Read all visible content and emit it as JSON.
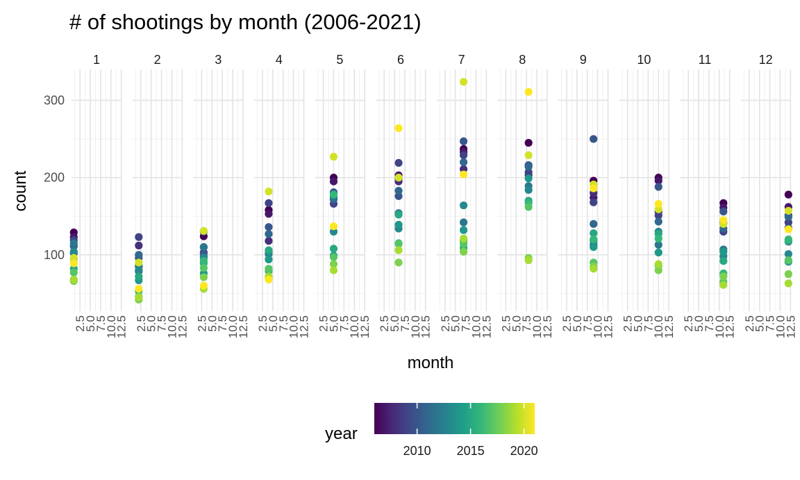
{
  "chart_data": {
    "type": "scatter",
    "title": "# of shootings by month (2006-2021)",
    "xlabel": "month",
    "ylabel": "count",
    "facet_labels": [
      "1",
      "2",
      "3",
      "4",
      "5",
      "6",
      "7",
      "8",
      "9",
      "10",
      "11",
      "12"
    ],
    "x_tick_labels": [
      "2.5",
      "5.0",
      "7.5",
      "10.0",
      "12.5"
    ],
    "x_ticks": [
      2.5,
      5.0,
      7.5,
      10.0,
      12.5
    ],
    "xlim": [
      0.45,
      12.55
    ],
    "y_tick_labels": [
      "100",
      "200",
      "300"
    ],
    "y_ticks": [
      100,
      200,
      300
    ],
    "ylim": [
      27,
      340
    ],
    "grid": true,
    "legend": {
      "title": "year",
      "position": "bottom",
      "tick_labels": [
        "2010",
        "2015",
        "2020"
      ],
      "ticks": [
        2010,
        2015,
        2020
      ],
      "range": [
        2006,
        2021
      ],
      "colors": [
        "#440154",
        "#482878",
        "#3e4a89",
        "#31688e",
        "#26828e",
        "#1f9e89",
        "#35b779",
        "#6ece58",
        "#b5de2b",
        "#fde725"
      ]
    },
    "years": [
      2006,
      2007,
      2008,
      2009,
      2010,
      2011,
      2012,
      2013,
      2014,
      2015,
      2016,
      2017,
      2018,
      2019,
      2020,
      2021
    ],
    "series": [
      {
        "month": 1,
        "counts": [
          129,
          123,
          112,
          119,
          102,
          111,
          115,
          104,
          95,
          82,
          68,
          77,
          66,
          68,
          96,
          89
        ]
      },
      {
        "month": 2,
        "counts": [
          79,
          85,
          112,
          123,
          96,
          100,
          86,
          80,
          67,
          72,
          53,
          46,
          42,
          45,
          90,
          56
        ]
      },
      {
        "month": 3,
        "counts": [
          124,
          103,
          110,
          130,
          102,
          98,
          110,
          96,
          76,
          89,
          92,
          83,
          71,
          56,
          131,
          60
        ]
      },
      {
        "month": 4,
        "counts": [
          158,
          153,
          118,
          167,
          136,
          127,
          101,
          103,
          94,
          106,
          79,
          82,
          69,
          72,
          182,
          68
        ]
      },
      {
        "month": 5,
        "counts": [
          200,
          195,
          172,
          166,
          181,
          172,
          175,
          130,
          99,
          108,
          178,
          97,
          88,
          80,
          227,
          137
        ]
      },
      {
        "month": 6,
        "counts": [
          199,
          203,
          195,
          219,
          176,
          183,
          154,
          134,
          139,
          152,
          115,
          114,
          90,
          106,
          200,
          264
        ]
      },
      {
        "month": 7,
        "counts": [
          237,
          233,
          211,
          229,
          247,
          220,
          142,
          164,
          132,
          109,
          118,
          114,
          104,
          121,
          324,
          204
        ]
      },
      {
        "month": 8,
        "counts": [
          245,
          216,
          203,
          207,
          216,
          214,
          189,
          184,
          199,
          170,
          167,
          162,
          96,
          93,
          229,
          311
        ]
      },
      {
        "month": 9,
        "counts": [
          196,
          174,
          180,
          168,
          250,
          140,
          113,
          118,
          110,
          128,
          120,
          90,
          85,
          82,
          191,
          186
        ]
      },
      {
        "month": 10,
        "counts": [
          200,
          196,
          156,
          151,
          188,
          143,
          113,
          130,
          103,
          127,
          121,
          86,
          80,
          88,
          159,
          166
        ]
      },
      {
        "month": 11,
        "counts": [
          167,
          161,
          141,
          130,
          156,
          134,
          107,
          98,
          104,
          92,
          76,
          65,
          72,
          61,
          140,
          145
        ]
      },
      {
        "month": 12,
        "counts": [
          178,
          162,
          151,
          142,
          135,
          149,
          117,
          101,
          91,
          118,
          120,
          93,
          75,
          63,
          157,
          133
        ]
      }
    ]
  }
}
